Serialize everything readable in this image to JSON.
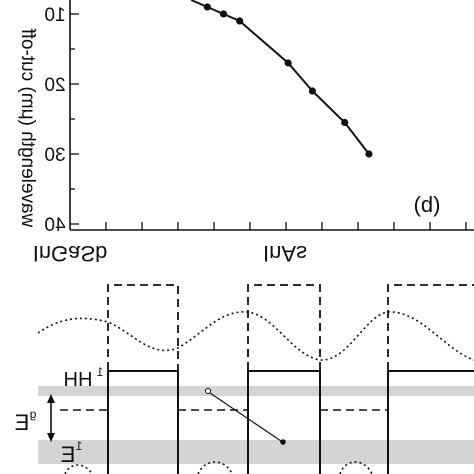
{
  "figure": {
    "top_panel": {
      "panel_label": "(b)",
      "ylabel": "wavelength (μm) cut-off",
      "ytick_labels": [
        "10",
        "20",
        "30",
        "40"
      ],
      "xtick_labels": [
        "InGaSb",
        "InAs"
      ]
    },
    "bottom_panel": {
      "band_labels": {
        "heavy_hole": "HH",
        "heavy_hole_subscript": "1",
        "gap": "E",
        "gap_subscript": "g",
        "electron": "E",
        "electron_subscript": "1"
      }
    }
  },
  "chart_data": {
    "type": "line",
    "title": "",
    "xlabel": "",
    "ylabel": "wavelength (μm) cut-off",
    "yaxis_inverted": true,
    "ylim": [
      8,
      40
    ],
    "x": [
      0.3,
      0.34,
      0.38,
      0.42,
      0.54,
      0.6,
      0.68,
      0.74
    ],
    "y": [
      8,
      9,
      10,
      11,
      17,
      21,
      25.5,
      30
    ],
    "grid": false,
    "legend": "none"
  },
  "colors": {
    "line": "#111111",
    "band_shading": "#d4d4d4",
    "background": "#ffffff"
  }
}
